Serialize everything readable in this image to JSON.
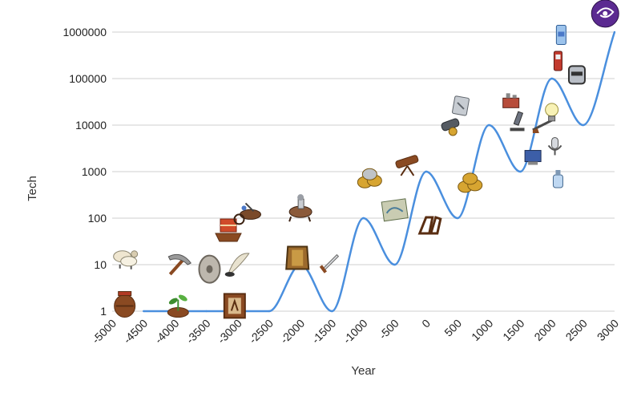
{
  "chart_data": {
    "type": "line",
    "title": "",
    "xlabel": "Year",
    "ylabel": "Tech",
    "y_scale": "log",
    "grid": true,
    "legend": "none",
    "xlim": [
      -5000,
      3000
    ],
    "ylim": [
      1,
      1000000
    ],
    "x_ticks": [
      "-5000",
      "-4500",
      "-4000",
      "-3500",
      "-3000",
      "-2500",
      "-2000",
      "-1500",
      "-1000",
      "-500",
      "0",
      "500",
      "1000",
      "1500",
      "2000",
      "2500",
      "3000"
    ],
    "y_ticks": [
      "1",
      "10",
      "100",
      "1000",
      "10000",
      "100000",
      "1000000"
    ],
    "series": [
      {
        "color": "#4a8fde",
        "points": [
          {
            "x": -4500,
            "y": 1
          },
          {
            "x": -3500,
            "y": 1
          },
          {
            "x": -2500,
            "y": 1
          },
          {
            "x": -2000,
            "y": 10
          },
          {
            "x": -1500,
            "y": 1
          },
          {
            "x": -1000,
            "y": 100
          },
          {
            "x": -500,
            "y": 10
          },
          {
            "x": 0,
            "y": 1000
          },
          {
            "x": 500,
            "y": 100
          },
          {
            "x": 1000,
            "y": 10000
          },
          {
            "x": 1500,
            "y": 1000
          },
          {
            "x": 2000,
            "y": 100000
          },
          {
            "x": 2500,
            "y": 10000
          },
          {
            "x": 3000,
            "y": 1000000
          }
        ]
      }
    ],
    "annotations": [
      {
        "icon": "clay-pot-icon",
        "x": -4800,
        "y": 1.4
      },
      {
        "icon": "sheep-icon",
        "x": -4800,
        "y": 15
      },
      {
        "icon": "sprout-icon",
        "x": -3950,
        "y": 1.4
      },
      {
        "icon": "pickaxe-icon",
        "x": -3950,
        "y": 10
      },
      {
        "icon": "millstone-wheel-icon",
        "x": -3450,
        "y": 8
      },
      {
        "icon": "sailing-ship-icon",
        "x": -3150,
        "y": 55
      },
      {
        "icon": "framed-picture-icon",
        "x": -3050,
        "y": 1.3
      },
      {
        "icon": "quill-pen-icon",
        "x": -3000,
        "y": 10
      },
      {
        "icon": "chariot-icon",
        "x": -2850,
        "y": 120
      },
      {
        "icon": "mounted-warrior-icon",
        "x": -2000,
        "y": 160
      },
      {
        "icon": "armor-icon",
        "x": -2050,
        "y": 14
      },
      {
        "icon": "dagger-icon",
        "x": -1550,
        "y": 11
      },
      {
        "icon": "coins-icon",
        "x": -900,
        "y": 750
      },
      {
        "icon": "map-icon",
        "x": -500,
        "y": 150
      },
      {
        "icon": "telescope-icon",
        "x": -300,
        "y": 1550
      },
      {
        "icon": "stirrup-icon",
        "x": 50,
        "y": 70
      },
      {
        "icon": "gold-coins-stack-icon",
        "x": 700,
        "y": 600
      },
      {
        "icon": "cannon-icon",
        "x": 400,
        "y": 10000
      },
      {
        "icon": "engraved-tablet-icon",
        "x": 550,
        "y": 26000
      },
      {
        "icon": "laboratory-icon",
        "x": 1350,
        "y": 30000
      },
      {
        "icon": "microscope-icon",
        "x": 1450,
        "y": 12000
      },
      {
        "icon": "rifle-icon",
        "x": 1850,
        "y": 10000
      },
      {
        "icon": "lightbulb-icon",
        "x": 2000,
        "y": 19000
      },
      {
        "icon": "telephone-icon",
        "x": 2100,
        "y": 240000
      },
      {
        "icon": "robot-head-icon",
        "x": 2400,
        "y": 120000
      },
      {
        "icon": "satellite-icon",
        "x": 2150,
        "y": 870000
      },
      {
        "icon": "microphone-icon",
        "x": 2050,
        "y": 3500
      },
      {
        "icon": "computer-icon",
        "x": 1700,
        "y": 2000
      },
      {
        "icon": "bottle-icon",
        "x": 2100,
        "y": 700
      },
      {
        "icon": "galaxy-icon",
        "x": 2850,
        "y": 2500000
      }
    ]
  }
}
